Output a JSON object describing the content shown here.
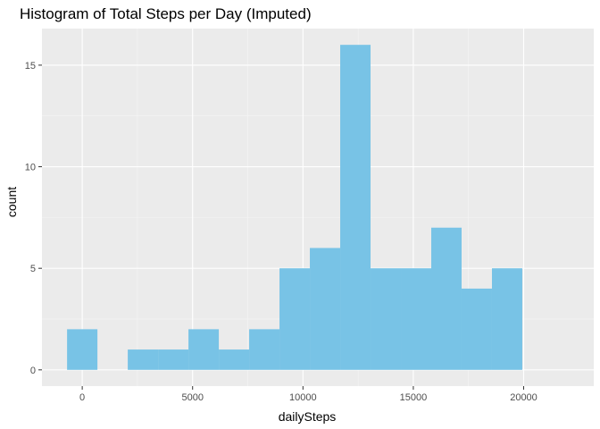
{
  "chart_data": {
    "type": "bar",
    "title": "Histogram of Total Steps per Day (Imputed)",
    "xlabel": "dailySteps",
    "ylabel": "count",
    "bin_width": 1375,
    "bins": [
      {
        "x0": -687.5,
        "x1": 687.5,
        "count": 2
      },
      {
        "x0": 687.5,
        "x1": 2062.5,
        "count": 0
      },
      {
        "x0": 2062.5,
        "x1": 3437.5,
        "count": 1
      },
      {
        "x0": 3437.5,
        "x1": 4812.5,
        "count": 1
      },
      {
        "x0": 4812.5,
        "x1": 6187.5,
        "count": 2
      },
      {
        "x0": 6187.5,
        "x1": 7562.5,
        "count": 1
      },
      {
        "x0": 7562.5,
        "x1": 8937.5,
        "count": 2
      },
      {
        "x0": 8937.5,
        "x1": 10312.5,
        "count": 5
      },
      {
        "x0": 10312.5,
        "x1": 11687.5,
        "count": 6
      },
      {
        "x0": 11687.5,
        "x1": 13062.5,
        "count": 16
      },
      {
        "x0": 13062.5,
        "x1": 14437.5,
        "count": 5
      },
      {
        "x0": 14437.5,
        "x1": 15812.5,
        "count": 5
      },
      {
        "x0": 15812.5,
        "x1": 17187.5,
        "count": 7
      },
      {
        "x0": 17187.5,
        "x1": 18562.5,
        "count": 4
      },
      {
        "x0": 18562.5,
        "x1": 19937.5,
        "count": 5
      }
    ],
    "xlim": [
      -1825,
      23175
    ],
    "ylim": [
      -0.8,
      16.8
    ],
    "x_ticks": [
      0,
      5000,
      10000,
      15000,
      20000
    ],
    "x_tick_labels": [
      "0",
      "5000",
      "10000",
      "15000",
      "20000"
    ],
    "y_ticks": [
      0,
      5,
      10,
      15
    ],
    "y_tick_labels": [
      "0",
      "5",
      "10",
      "15"
    ],
    "grid": true,
    "legend": "none",
    "colors": {
      "bar": "#78C3E6",
      "panel": "#EBEBEB",
      "grid_major": "#FFFFFF",
      "grid_minor": "#F5F5F5"
    }
  }
}
